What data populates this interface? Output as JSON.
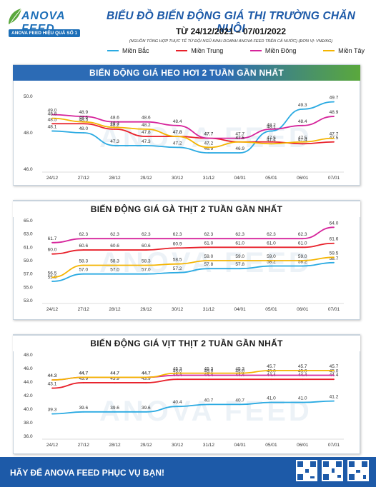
{
  "header": {
    "brand_word": "ANOVA FEED",
    "slogan": "ANOVA FEED HIỆU QUẢ SỐ 1",
    "title": "BIỂU ĐỒ BIẾN ĐỘNG GIÁ THỊ TRƯỜNG CHĂN NUÔI",
    "date_range": "TỪ 24/12/2021 – 07/01/2022",
    "source_note": "(NGUỒN TỔNG HỢP THỰC TẾ TỪ ĐỘI NGŨ KINH DOANH ANOVA FEED TRÊN CẢ NƯỚC)    (ĐƠN VỊ: VNĐ/KG)"
  },
  "legend": [
    {
      "name": "Miền Bắc",
      "color": "#2aaae2"
    },
    {
      "name": "Miền Trung",
      "color": "#e8202a"
    },
    {
      "name": "Miền Đông",
      "color": "#d6249b"
    },
    {
      "name": "Miền Tây",
      "color": "#f4b400"
    }
  ],
  "watermark": "ANOVA FEED",
  "chart_data": [
    {
      "type": "line",
      "title": "BIẾN ĐỘNG GIÁ HEO HƠI 2 TUẦN GẦN NHẤT",
      "categories": [
        "24/12",
        "27/12",
        "28/12",
        "29/12",
        "30/12",
        "31/12",
        "04/01",
        "05/01",
        "06/01",
        "07/01"
      ],
      "ylim": [
        46.0,
        50.0
      ],
      "yticks": [
        "46.0",
        "48.0",
        "50.0"
      ],
      "series": [
        {
          "name": "Miền Bắc",
          "color": "#2aaae2",
          "values": [
            48.1,
            48.0,
            47.3,
            47.3,
            47.2,
            46.9,
            46.9,
            48.1,
            49.3,
            49.7
          ]
        },
        {
          "name": "Miền Trung",
          "color": "#e8202a",
          "values": [
            48.5,
            48.5,
            48.2,
            47.8,
            47.8,
            47.7,
            47.5,
            47.5,
            47.4,
            47.5
          ]
        },
        {
          "name": "Miền Đông",
          "color": "#d6249b",
          "values": [
            49.0,
            48.9,
            48.6,
            48.6,
            48.4,
            47.7,
            47.7,
            48.2,
            48.4,
            48.9
          ]
        },
        {
          "name": "Miền Tây",
          "color": "#f4b400",
          "values": [
            48.8,
            48.6,
            48.3,
            48.2,
            47.8,
            47.2,
            47.5,
            47.4,
            47.5,
            47.7
          ]
        }
      ]
    },
    {
      "type": "line",
      "title": "BIẾN ĐỘNG GIÁ GÀ THỊT 2 TUẦN GẦN NHẤT",
      "categories": [
        "24/12",
        "27/12",
        "28/12",
        "29/12",
        "30/12",
        "31/12",
        "04/01",
        "05/01",
        "06/01",
        "07/01"
      ],
      "ylim": [
        53.0,
        65.0
      ],
      "yticks": [
        "53.0",
        "55.0",
        "57.0",
        "59.0",
        "61.0",
        "63.0",
        "65.0"
      ],
      "series": [
        {
          "name": "Miền Bắc",
          "color": "#2aaae2",
          "values": [
            55.9,
            57.0,
            57.0,
            57.0,
            57.2,
            57.8,
            57.8,
            58.2,
            58.2,
            58.7
          ]
        },
        {
          "name": "Miền Trung",
          "color": "#e8202a",
          "values": [
            60.0,
            60.6,
            60.6,
            60.6,
            60.9,
            61.0,
            61.0,
            61.0,
            61.0,
            61.6
          ]
        },
        {
          "name": "Miền Đông",
          "color": "#d6249b",
          "values": [
            61.7,
            62.3,
            62.3,
            62.3,
            62.3,
            62.3,
            62.3,
            62.3,
            62.3,
            64.0
          ]
        },
        {
          "name": "Miền Tây",
          "color": "#f4b400",
          "values": [
            56.5,
            58.3,
            58.3,
            58.3,
            58.5,
            59.0,
            59.0,
            59.0,
            59.0,
            59.5
          ]
        }
      ]
    },
    {
      "type": "line",
      "title": "BIẾN ĐỘNG GIÁ VỊT THỊT 2 TUẦN GẦN NHẤT",
      "categories": [
        "24/12",
        "27/12",
        "28/12",
        "29/12",
        "30/12",
        "31/12",
        "04/01",
        "05/01",
        "06/01",
        "07/01"
      ],
      "ylim": [
        36.0,
        48.0
      ],
      "yticks": [
        "36.0",
        "38.0",
        "40.0",
        "42.0",
        "44.0",
        "46.0",
        "48.0"
      ],
      "series": [
        {
          "name": "Miền Bắc",
          "color": "#2aaae2",
          "values": [
            39.3,
            39.6,
            39.6,
            39.6,
            40.4,
            40.7,
            40.7,
            41.0,
            41.0,
            41.2
          ]
        },
        {
          "name": "Miền Trung",
          "color": "#e8202a",
          "values": [
            43.1,
            43.9,
            43.9,
            43.9,
            44.4,
            44.4,
            44.4,
            44.4,
            44.4,
            44.4
          ]
        },
        {
          "name": "Miền Đông",
          "color": "#d6249b",
          "values": [
            44.3,
            44.7,
            44.7,
            44.7,
            45.0,
            45.0,
            45.0,
            45.0,
            45.0,
            45.0
          ]
        },
        {
          "name": "Miền Tây",
          "color": "#f4b400",
          "values": [
            44.3,
            44.7,
            44.7,
            44.7,
            45.3,
            45.3,
            45.3,
            45.7,
            45.7,
            45.7
          ]
        }
      ]
    }
  ],
  "footer": {
    "text": "HÃY ĐỂ ANOVA FEED PHỤC VỤ BẠN!"
  }
}
